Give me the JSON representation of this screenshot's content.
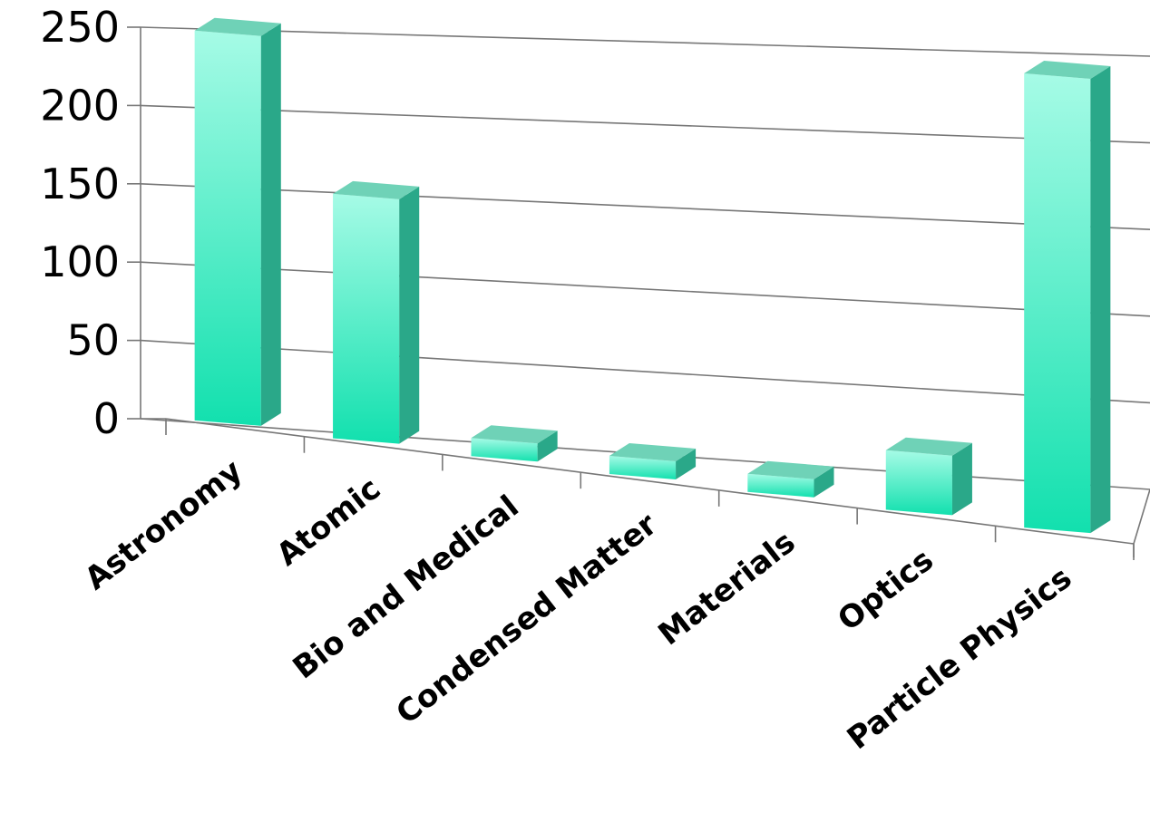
{
  "chart_data": {
    "type": "bar",
    "title": "",
    "xlabel": "",
    "ylabel": "",
    "categories": [
      "Astronomy",
      "Atomic",
      "Bio and Medical",
      "Condensed Matter",
      "Materials",
      "Optics",
      "Particle Physics"
    ],
    "values": [
      248,
      153,
      10,
      10,
      8,
      35,
      263
    ],
    "ylim": [
      0,
      250
    ],
    "yticks": [
      "0",
      "50",
      "100",
      "150",
      "200",
      "250"
    ],
    "grid": true,
    "legend": "none",
    "style": "3d-column",
    "colors": {
      "bar_front_top": "#a6fbe6",
      "bar_front_bottom": "#12e0ae",
      "bar_side": "#2aa889",
      "bar_top": "#6fd2b7",
      "grid": "#777777"
    }
  }
}
